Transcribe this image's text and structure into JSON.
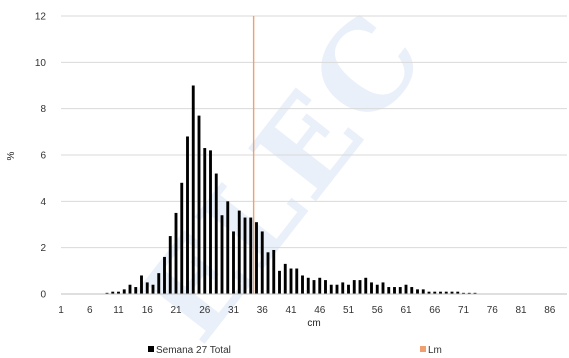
{
  "chart_data": {
    "type": "bar",
    "title": "",
    "xlabel": "cm",
    "ylabel": "%",
    "ylim": [
      0,
      12
    ],
    "yticks": [
      0,
      2,
      4,
      6,
      8,
      10,
      12
    ],
    "xlim": [
      1,
      89
    ],
    "xticks": [
      1,
      6,
      11,
      16,
      21,
      26,
      31,
      36,
      41,
      46,
      51,
      56,
      61,
      66,
      71,
      76,
      81,
      86
    ],
    "grid": "horizontal",
    "legend_position": "bottom",
    "series": [
      {
        "name": "Semana 27 Total",
        "color": "#000000",
        "x": [
          1,
          2,
          3,
          4,
          5,
          6,
          7,
          8,
          9,
          10,
          11,
          12,
          13,
          14,
          15,
          16,
          17,
          18,
          19,
          20,
          21,
          22,
          23,
          24,
          25,
          26,
          27,
          28,
          29,
          30,
          31,
          32,
          33,
          34,
          35,
          36,
          37,
          38,
          39,
          40,
          41,
          42,
          43,
          44,
          45,
          46,
          47,
          48,
          49,
          50,
          51,
          52,
          53,
          54,
          55,
          56,
          57,
          58,
          59,
          60,
          61,
          62,
          63,
          64,
          65,
          66,
          67,
          68,
          69,
          70,
          71,
          72,
          73,
          74,
          75,
          76,
          77,
          78,
          79,
          80,
          81,
          82,
          83,
          84,
          85,
          86,
          87,
          88,
          89
        ],
        "values": [
          0,
          0,
          0,
          0,
          0,
          0,
          0,
          0,
          0.05,
          0.1,
          0.1,
          0.2,
          0.4,
          0.3,
          0.8,
          0.5,
          0.4,
          0.9,
          1.6,
          2.5,
          3.5,
          4.8,
          6.8,
          9.0,
          7.7,
          6.3,
          6.2,
          5.2,
          3.4,
          4.0,
          2.7,
          3.6,
          3.3,
          3.3,
          3.1,
          2.7,
          1.8,
          1.9,
          1.0,
          1.3,
          1.1,
          1.1,
          0.8,
          0.7,
          0.6,
          0.7,
          0.6,
          0.4,
          0.4,
          0.5,
          0.4,
          0.6,
          0.6,
          0.7,
          0.5,
          0.4,
          0.5,
          0.3,
          0.3,
          0.3,
          0.4,
          0.3,
          0.2,
          0.2,
          0.1,
          0.1,
          0.1,
          0.1,
          0.1,
          0.1,
          0.05,
          0.05,
          0.05,
          0,
          0,
          0,
          0,
          0,
          0,
          0,
          0,
          0,
          0,
          0,
          0,
          0,
          0,
          0,
          0
        ]
      },
      {
        "name": "Lm",
        "color": "#f0a070",
        "type": "vline",
        "x": 34.5
      }
    ]
  },
  "watermark": {
    "text": "ELEC",
    "color": "#2a6fc9"
  }
}
